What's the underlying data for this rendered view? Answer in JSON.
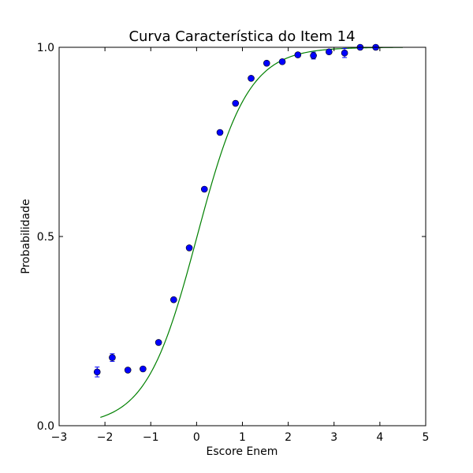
{
  "chart_data": {
    "type": "scatter",
    "title": "Curva Característica do Item 14",
    "xlabel": "Escore Enem",
    "ylabel": "Probabilidade",
    "xlim": [
      -3,
      5
    ],
    "ylim": [
      0.0,
      1.0
    ],
    "xticks": [
      -3,
      -2,
      -1,
      0,
      1,
      2,
      3,
      4,
      5
    ],
    "xtick_labels": [
      "−3",
      "−2",
      "−1",
      "0",
      "1",
      "2",
      "3",
      "4",
      "5"
    ],
    "yticks": [
      0.0,
      0.5,
      1.0
    ],
    "ytick_labels": [
      "0.0",
      "0.5",
      "1.0"
    ],
    "grid": false,
    "points": {
      "color": "#0000ff",
      "x": [
        -2.17,
        -1.84,
        -1.5,
        -1.17,
        -0.83,
        -0.5,
        -0.16,
        0.17,
        0.51,
        0.85,
        1.19,
        1.53,
        1.87,
        2.21,
        2.55,
        2.89,
        3.23,
        3.57,
        3.91
      ],
      "y": [
        0.142,
        0.18,
        0.147,
        0.15,
        0.22,
        0.333,
        0.47,
        0.625,
        0.775,
        0.852,
        0.918,
        0.958,
        0.962,
        0.98,
        0.978,
        0.988,
        0.985,
        1.0,
        1.0
      ],
      "yerr": [
        0.013,
        0.01,
        0.005,
        0.004,
        0.004,
        0.004,
        0.004,
        0.004,
        0.003,
        0.003,
        0.003,
        0.003,
        0.004,
        0.004,
        0.009,
        0.005,
        0.012,
        0.004,
        0.004
      ]
    },
    "curve": {
      "color": "#008000",
      "x_range": [
        -2.1,
        4.5
      ],
      "a": 1.8,
      "b": 0.01,
      "c": 0.0
    }
  }
}
